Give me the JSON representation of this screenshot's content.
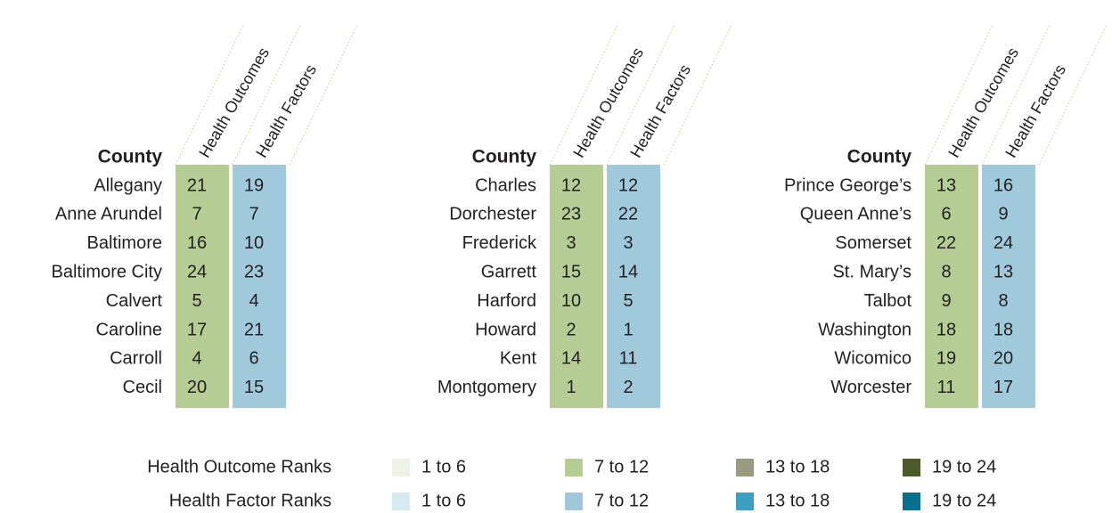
{
  "panels": [
    {
      "header": "County",
      "columns": [
        "Health Outcomes",
        "Health Factors"
      ],
      "rows": [
        [
          "Allegany",
          21,
          19
        ],
        [
          "Anne Arundel",
          7,
          7
        ],
        [
          "Baltimore",
          16,
          10
        ],
        [
          "Baltimore City",
          24,
          23
        ],
        [
          "Calvert",
          5,
          4
        ],
        [
          "Caroline",
          17,
          21
        ],
        [
          "Carroll",
          4,
          6
        ],
        [
          "Cecil",
          20,
          15
        ]
      ]
    },
    {
      "header": "County",
      "columns": [
        "Health Outcomes",
        "Health Factors"
      ],
      "rows": [
        [
          "Charles",
          12,
          12
        ],
        [
          "Dorchester",
          23,
          22
        ],
        [
          "Frederick",
          3,
          3
        ],
        [
          "Garrett",
          15,
          14
        ],
        [
          "Harford",
          10,
          5
        ],
        [
          "Howard",
          2,
          1
        ],
        [
          "Kent",
          14,
          11
        ],
        [
          "Montgomery",
          1,
          2
        ]
      ]
    },
    {
      "header": "County",
      "columns": [
        "Health Outcomes",
        "Health Factors"
      ],
      "rows": [
        [
          "Prince George’s",
          13,
          16
        ],
        [
          "Queen Anne’s",
          6,
          9
        ],
        [
          "Somerset",
          22,
          24
        ],
        [
          "St. Mary’s",
          8,
          13
        ],
        [
          "Talbot",
          9,
          8
        ],
        [
          "Washington",
          18,
          18
        ],
        [
          "Wicomico",
          19,
          20
        ],
        [
          "Worcester",
          11,
          17
        ]
      ]
    }
  ],
  "column_colors": [
    "#b5cc94",
    "#a0c9dc"
  ],
  "legend": [
    {
      "label": "Health Outcome Ranks",
      "items": [
        {
          "label": "1 to 6",
          "color": "#eef1e6"
        },
        {
          "label": "7 to 12",
          "color": "#b5cc94"
        },
        {
          "label": "13 to 18",
          "color": "#9a9a83"
        },
        {
          "label": "19 to 24",
          "color": "#4a5a2a"
        }
      ]
    },
    {
      "label": "Health Factor Ranks",
      "items": [
        {
          "label": "1 to 6",
          "color": "#d8eaf1"
        },
        {
          "label": "7 to 12",
          "color": "#9fc8da"
        },
        {
          "label": "13 to 18",
          "color": "#3ea0c0"
        },
        {
          "label": "19 to 24",
          "color": "#0a6e8c"
        }
      ]
    }
  ]
}
